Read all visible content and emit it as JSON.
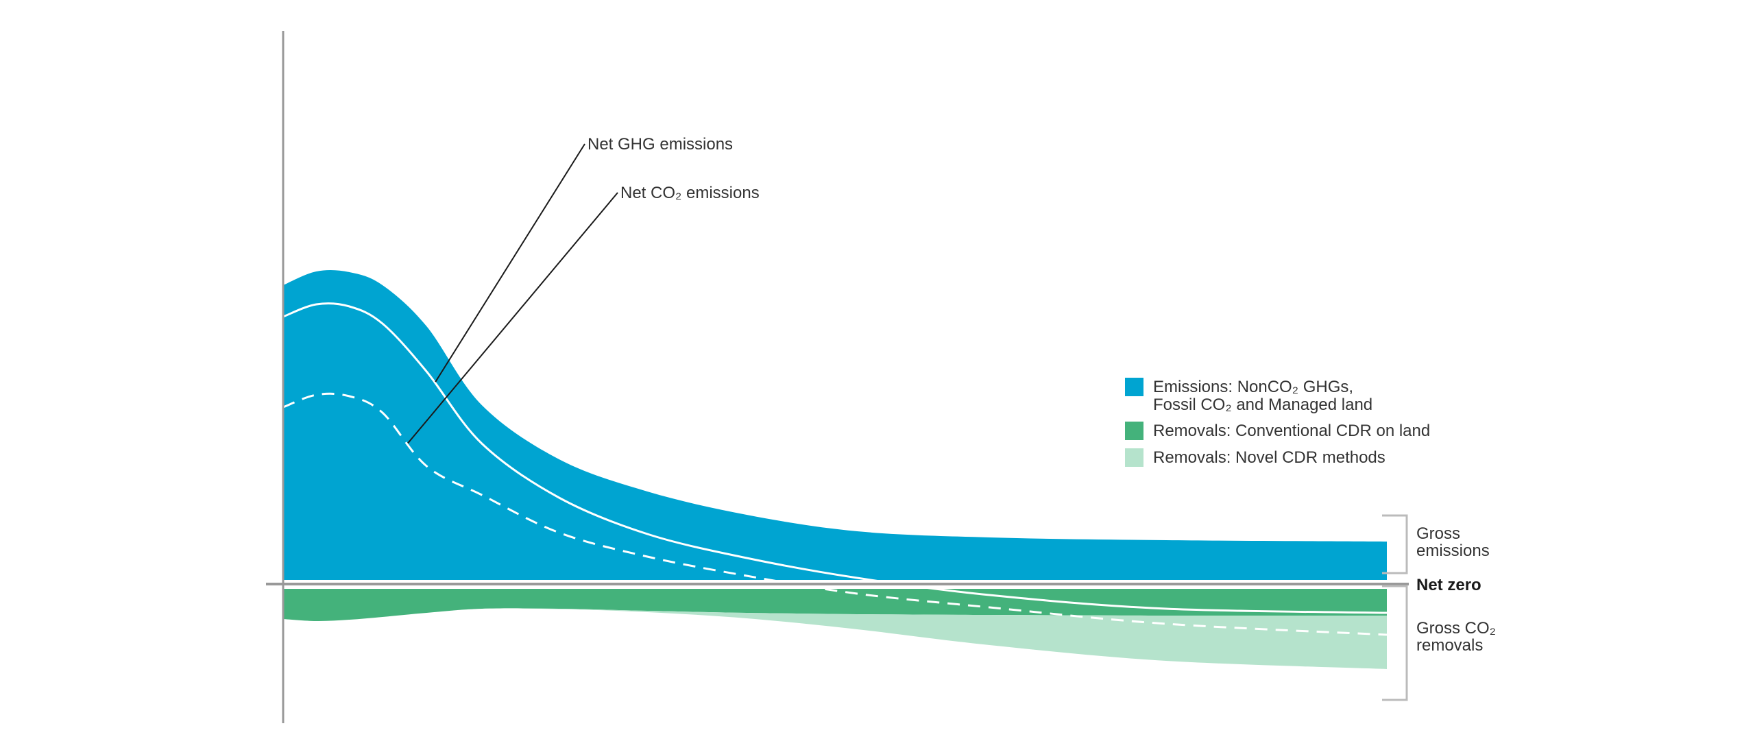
{
  "chart_data": {
    "type": "area",
    "title": "",
    "xlabel": "",
    "ylabel": "",
    "ylim": [
      -108,
      450
    ],
    "x": [
      0,
      30,
      60,
      90,
      130,
      180,
      250,
      330,
      420,
      520,
      640,
      800,
      1000
    ],
    "series": [
      {
        "name": "Emissions: NonCO₂ GHGs, Fossil CO₂ and Managed land",
        "role": "gross emissions",
        "values": [
          430,
          450,
          449,
          430,
          370,
          255,
          176,
          129,
          95,
          71,
          62,
          58,
          56
        ]
      },
      {
        "name": "Removals: Conventional CDR on land",
        "role": "gross removals",
        "values": [
          -44,
          -47,
          -45,
          -41,
          -35,
          -29,
          -29,
          -32,
          -35,
          -37,
          -38,
          -39,
          -39
        ]
      },
      {
        "name": "Removals: Novel CDR methods",
        "role": "gross removals",
        "values": [
          0,
          0,
          0,
          0,
          0,
          0,
          -0.5,
          -2,
          -8,
          -22,
          -44,
          -66,
          -78
        ]
      }
    ],
    "lines": [
      {
        "name": "Net GHG emissions",
        "style": "solid",
        "values": [
          390,
          408,
          405,
          380,
          310,
          205,
          126,
          73,
          38,
          9,
          -16,
          -36,
          -42
        ]
      },
      {
        "name": "Net CO₂ emissions",
        "style": "dashed",
        "values": [
          258,
          276,
          274,
          250,
          172,
          130,
          75,
          40,
          12,
          -14,
          -34,
          -58,
          -74
        ]
      }
    ],
    "annotations": [
      {
        "text": "Net GHG emissions",
        "points_to": "Net GHG emissions"
      },
      {
        "text": "Net  CO₂ emissions",
        "points_to": "Net CO₂ emissions"
      }
    ],
    "brackets": [
      {
        "lines": [
          "Gross",
          "emissions"
        ]
      },
      {
        "lines": [
          "Gross CO₂",
          "removals"
        ]
      }
    ],
    "baseline_label": "Net zero",
    "legend": {
      "placement": "right",
      "entries": [
        {
          "lines": [
            "Emissions: NonCO₂ GHGs,",
            "Fossil CO₂ and Managed land"
          ],
          "color": "#00A4D1"
        },
        {
          "lines": [
            "Removals: Conventional CDR on land"
          ],
          "color": "#44B27B"
        },
        {
          "lines": [
            "Removals: Novel CDR methods"
          ],
          "color": "#B5E3CC"
        }
      ]
    },
    "grid": false
  },
  "colors": {
    "emissions": "#00A4D1",
    "conventional_cdr": "#44B27B",
    "novel_cdr": "#B5E3CC",
    "axis": "#999999",
    "net_line": "#ffffff",
    "leader": "#1a1a1a",
    "bracket": "#bbbbbb",
    "text": "#333333"
  }
}
